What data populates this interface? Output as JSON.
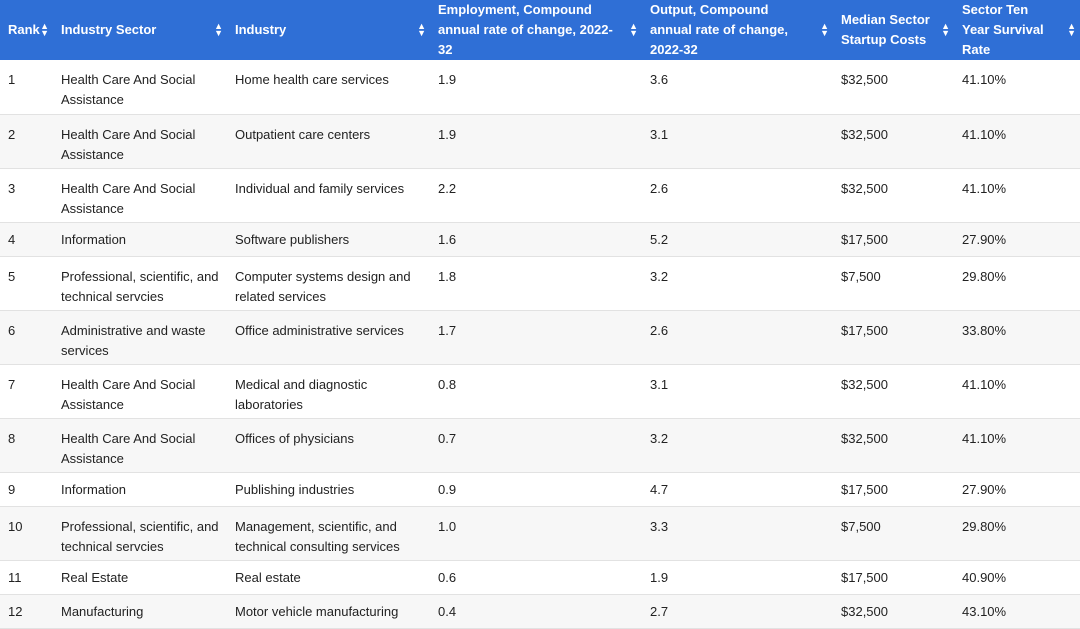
{
  "table": {
    "headers": [
      "Rank",
      "Industry Sector",
      "Industry",
      "Employment, Compound annual rate of change, 2022-32",
      "Output, Compound annual rate of change, 2022-32",
      "Median Sector Startup Costs",
      "Sector Ten Year Survival Rate"
    ],
    "sort_icon": "sort-up-down-icon",
    "header_color": "#2f6fd6",
    "rows": [
      [
        "1",
        "Health Care And Social Assistance",
        "Home health care services",
        "1.9",
        "3.6",
        "$32,500",
        "41.10%"
      ],
      [
        "2",
        "Health Care And Social Assistance",
        "Outpatient care centers",
        "1.9",
        "3.1",
        "$32,500",
        "41.10%"
      ],
      [
        "3",
        "Health Care And Social Assistance",
        "Individual and family services",
        "2.2",
        "2.6",
        "$32,500",
        "41.10%"
      ],
      [
        "4",
        "Information",
        "Software publishers",
        "1.6",
        "5.2",
        "$17,500",
        "27.90%"
      ],
      [
        "5",
        "Professional, scientific, and technical servcies",
        "Computer systems design and related services",
        "1.8",
        "3.2",
        "$7,500",
        "29.80%"
      ],
      [
        "6",
        "Administrative and waste services",
        "Office administrative services",
        "1.7",
        "2.6",
        "$17,500",
        "33.80%"
      ],
      [
        "7",
        "Health Care And Social Assistance",
        "Medical and diagnostic laboratories",
        "0.8",
        "3.1",
        "$32,500",
        "41.10%"
      ],
      [
        "8",
        "Health Care And Social Assistance",
        "Offices of physicians",
        "0.7",
        "3.2",
        "$32,500",
        "41.10%"
      ],
      [
        "9",
        "Information",
        "Publishing industries",
        "0.9",
        "4.7",
        "$17,500",
        "27.90%"
      ],
      [
        "10",
        "Professional, scientific, and technical servcies",
        "Management, scientific, and technical consulting services",
        "1.0",
        "3.3",
        "$7,500",
        "29.80%"
      ],
      [
        "11",
        "Real Estate",
        "Real estate",
        "0.6",
        "1.9",
        "$17,500",
        "40.90%"
      ],
      [
        "12",
        "Manufacturing",
        "Motor vehicle manufacturing",
        "0.4",
        "2.7",
        "$32,500",
        "43.10%"
      ]
    ]
  }
}
